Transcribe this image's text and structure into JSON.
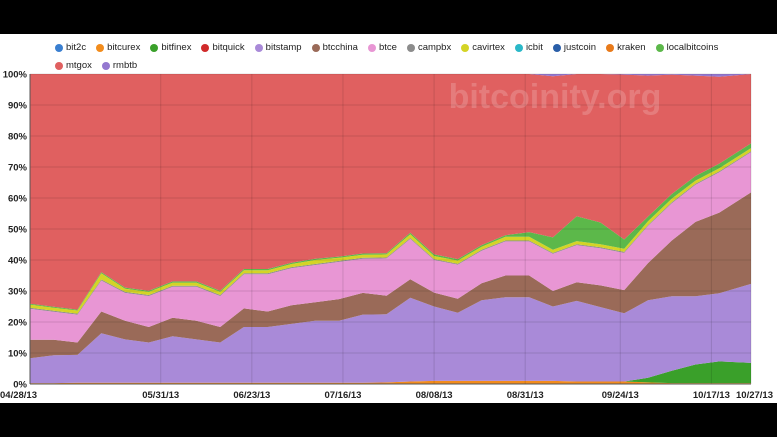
{
  "chart_data": {
    "type": "area",
    "stacked": true,
    "percent": true,
    "title": "",
    "xlabel": "",
    "ylabel": "",
    "ylim": [
      0,
      100
    ],
    "grid": true,
    "legend_position": "top",
    "watermark": "bitcoinity.org",
    "x_tick_labels": [
      "04/28/13",
      "05/31/13",
      "06/23/13",
      "07/16/13",
      "08/08/13",
      "08/31/13",
      "09/24/13",
      "10/17/13",
      "10/27/13"
    ],
    "x_tick_dates": [
      "2013-04-28",
      "2013-05-31",
      "2013-06-23",
      "2013-07-16",
      "2013-08-08",
      "2013-08-31",
      "2013-09-24",
      "2013-10-17",
      "2013-10-27"
    ],
    "y_tick_labels": [
      "0%",
      "10%",
      "20%",
      "30%",
      "40%",
      "50%",
      "60%",
      "70%",
      "80%",
      "90%",
      "100%"
    ],
    "x": [
      "2013-04-28",
      "2013-05-04",
      "2013-05-10",
      "2013-05-16",
      "2013-05-22",
      "2013-05-28",
      "2013-06-03",
      "2013-06-09",
      "2013-06-15",
      "2013-06-21",
      "2013-06-27",
      "2013-07-03",
      "2013-07-09",
      "2013-07-15",
      "2013-07-21",
      "2013-07-27",
      "2013-08-02",
      "2013-08-08",
      "2013-08-14",
      "2013-08-20",
      "2013-08-26",
      "2013-09-01",
      "2013-09-07",
      "2013-09-13",
      "2013-09-19",
      "2013-09-25",
      "2013-10-01",
      "2013-10-07",
      "2013-10-13",
      "2013-10-19",
      "2013-10-27"
    ],
    "series": [
      {
        "name": "bit2c",
        "color": "#3a7fd0",
        "values": [
          0,
          0,
          0,
          0,
          0,
          0,
          0,
          0,
          0,
          0,
          0,
          0,
          0,
          0,
          0,
          0,
          0,
          0,
          0,
          0,
          0,
          0,
          0,
          0,
          0,
          0,
          0,
          0,
          0,
          0,
          0
        ]
      },
      {
        "name": "bitcurex",
        "color": "#f28c1c",
        "values": [
          0.3,
          0.3,
          0.4,
          0.4,
          0.4,
          0.4,
          0.4,
          0.4,
          0.4,
          0.4,
          0.4,
          0.4,
          0.4,
          0.4,
          0.4,
          0.5,
          0.8,
          1,
          1,
          1,
          1,
          1,
          1,
          0.8,
          0.8,
          0.8,
          0.5,
          0.3,
          0.3,
          0.3,
          0.3
        ]
      },
      {
        "name": "bitfinex",
        "color": "#3aa02a",
        "values": [
          0,
          0,
          0,
          0,
          0,
          0,
          0,
          0,
          0,
          0,
          0,
          0,
          0,
          0,
          0,
          0,
          0,
          0,
          0,
          0,
          0,
          0,
          0,
          0,
          0,
          0,
          1.5,
          4,
          6,
          7,
          6.5
        ]
      },
      {
        "name": "bitquick",
        "color": "#d02a2a",
        "values": [
          0,
          0,
          0,
          0,
          0,
          0,
          0,
          0,
          0,
          0,
          0,
          0,
          0,
          0,
          0,
          0,
          0,
          0,
          0,
          0,
          0,
          0,
          0,
          0,
          0,
          0,
          0,
          0,
          0,
          0,
          0
        ]
      },
      {
        "name": "bitstamp",
        "color": "#a98ad8",
        "values": [
          8,
          9,
          9,
          16,
          14,
          13,
          15,
          14,
          13,
          18,
          18,
          19,
          20,
          20,
          22,
          22,
          27,
          24,
          22,
          26,
          27,
          27,
          24,
          26,
          24,
          22,
          25,
          24,
          22,
          22,
          25.5
        ]
      },
      {
        "name": "btcchina",
        "color": "#9a6a58",
        "values": [
          6,
          5,
          4,
          7,
          6,
          5,
          6,
          6,
          5,
          6,
          5,
          6,
          6,
          7,
          7,
          6,
          6,
          4.5,
          4.5,
          5.5,
          7,
          7,
          5,
          6,
          7,
          7.5,
          12,
          18,
          24,
          26,
          29.5
        ]
      },
      {
        "name": "btce",
        "color": "#e896d4",
        "values": [
          10,
          9,
          9,
          10,
          9,
          10,
          10,
          11,
          10,
          11,
          12,
          12,
          12,
          12,
          11,
          12,
          13,
          10.5,
          11,
          10.5,
          11,
          11,
          12,
          12,
          12,
          12,
          12,
          12,
          12,
          13,
          13
        ]
      },
      {
        "name": "campbx",
        "color": "#8c8c8c",
        "values": [
          0.3,
          0.3,
          0.3,
          0.3,
          0.3,
          0.3,
          0.3,
          0.3,
          0.3,
          0.3,
          0.3,
          0.3,
          0.3,
          0.3,
          0.3,
          0.3,
          0.3,
          0.3,
          0.3,
          0.3,
          0.3,
          0.3,
          0.3,
          0.3,
          0.3,
          0.3,
          0.3,
          0.3,
          0.3,
          0.3,
          0.3
        ]
      },
      {
        "name": "cavirtex",
        "color": "#d4d426",
        "values": [
          1,
          1,
          1,
          2,
          1,
          1,
          1,
          1,
          1,
          1,
          1,
          1,
          1.3,
          1,
          1,
          1,
          1.2,
          1,
          1,
          1,
          1.2,
          1.2,
          1,
          1,
          1,
          1,
          1.2,
          1.2,
          1,
          1,
          1
        ]
      },
      {
        "name": "icbit",
        "color": "#2ab8c8",
        "values": [
          0,
          0,
          0,
          0,
          0,
          0,
          0,
          0,
          0,
          0,
          0,
          0,
          0,
          0,
          0,
          0,
          0,
          0,
          0,
          0,
          0,
          0,
          0,
          0,
          0,
          0,
          0,
          0,
          0,
          0,
          0
        ]
      },
      {
        "name": "justcoin",
        "color": "#2a5ea8",
        "values": [
          0,
          0,
          0,
          0,
          0,
          0,
          0,
          0,
          0,
          0,
          0,
          0,
          0,
          0,
          0,
          0,
          0,
          0,
          0,
          0,
          0,
          0,
          0,
          0,
          0,
          0,
          0,
          0,
          0,
          0,
          0
        ]
      },
      {
        "name": "kraken",
        "color": "#e87a1a",
        "values": [
          0,
          0,
          0,
          0,
          0,
          0,
          0,
          0,
          0,
          0,
          0,
          0,
          0,
          0,
          0,
          0,
          0,
          0,
          0,
          0,
          0,
          0,
          0,
          0,
          0,
          0,
          0,
          0,
          0,
          0,
          0
        ]
      },
      {
        "name": "localbitcoins",
        "color": "#5cb84a",
        "values": [
          0.3,
          0.3,
          0.3,
          0.4,
          0.4,
          0.4,
          0.4,
          0.4,
          0.4,
          0.4,
          0.4,
          0.4,
          0.4,
          0.4,
          0.4,
          0.4,
          0.5,
          0.5,
          0.5,
          0.5,
          0.5,
          1.5,
          4,
          8,
          7,
          3,
          1.5,
          1.5,
          1.5,
          1.5,
          1.5
        ]
      },
      {
        "name": "mtgox",
        "color": "#e06060",
        "values": [
          74.1,
          75.1,
          76,
          63.9,
          68.9,
          69.9,
          66.9,
          66.9,
          69.9,
          62.9,
          62.9,
          60.9,
          59.6,
          58.9,
          57.9,
          57.8,
          51.2,
          58.2,
          59.7,
          55.2,
          52,
          51,
          52,
          46,
          48,
          53.2,
          45.5,
          38.5,
          32.4,
          28,
          22.5
        ]
      },
      {
        "name": "rmbtb",
        "color": "#9478d0",
        "values": [
          0,
          0,
          0,
          0,
          0,
          0,
          0,
          0,
          0,
          0,
          0,
          0,
          0,
          0,
          0,
          0,
          0,
          0,
          0,
          0,
          0,
          0.5,
          0.7,
          0.9,
          0.9,
          0.9,
          0.5,
          0.2,
          0.5,
          0.9,
          0.9
        ]
      }
    ]
  }
}
